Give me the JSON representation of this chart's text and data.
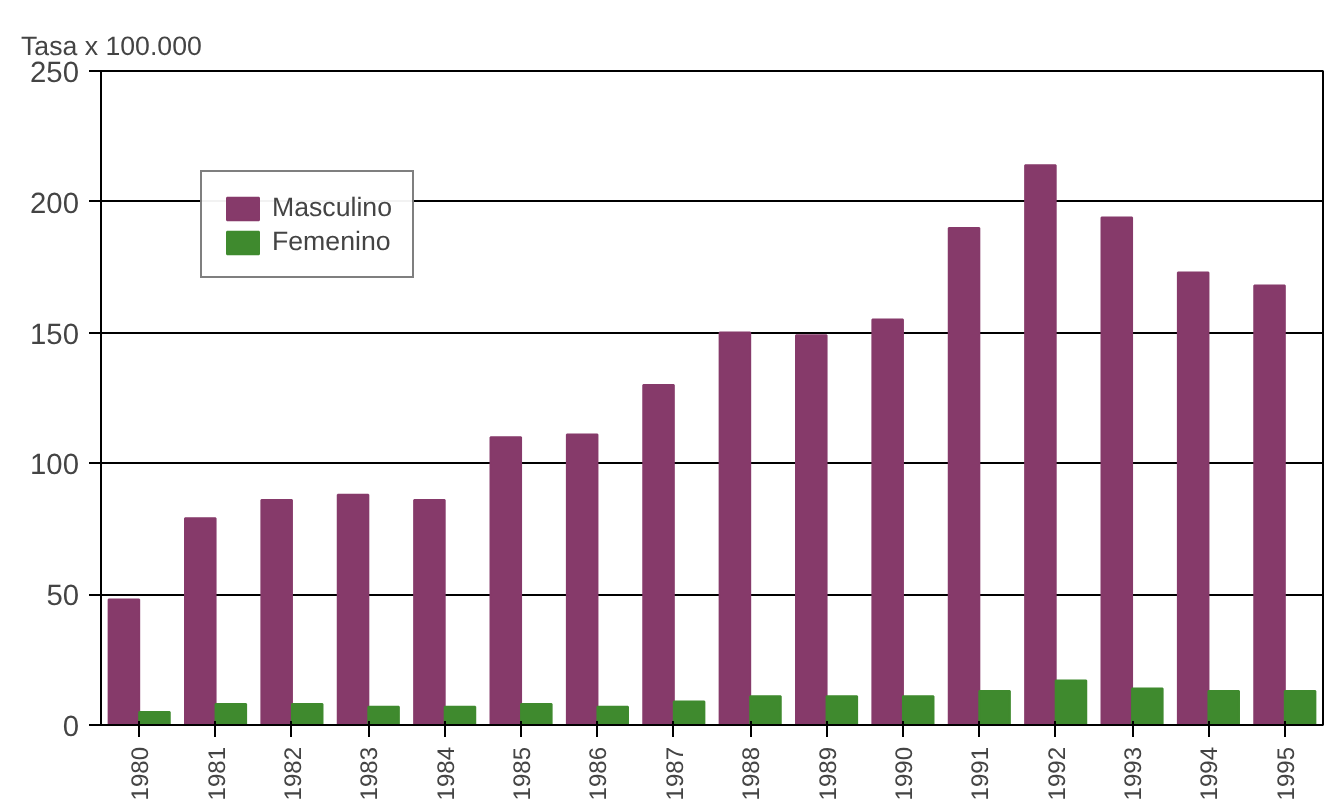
{
  "chart_data": {
    "type": "bar",
    "ylabel": "Tasa x 100.000",
    "categories": [
      "1980",
      "1981",
      "1982",
      "1983",
      "1984",
      "1985",
      "1986",
      "1987",
      "1988",
      "1989",
      "1990",
      "1991",
      "1992",
      "1993",
      "1994",
      "1995"
    ],
    "series": [
      {
        "name": "Masculino",
        "color": "#863a6a",
        "values": [
          48,
          79,
          86,
          88,
          86,
          110,
          111,
          130,
          150,
          149,
          155,
          190,
          214,
          194,
          173,
          168
        ]
      },
      {
        "name": "Femenino",
        "color": "#3f8a2e",
        "values": [
          5,
          8,
          8,
          7,
          7,
          8,
          7,
          9,
          11,
          11,
          11,
          13,
          17,
          14,
          13,
          13
        ]
      }
    ],
    "ylim": [
      0,
      250
    ],
    "yticks": [
      0,
      50,
      100,
      150,
      200,
      250
    ],
    "grid": "y",
    "legend": "top left"
  }
}
